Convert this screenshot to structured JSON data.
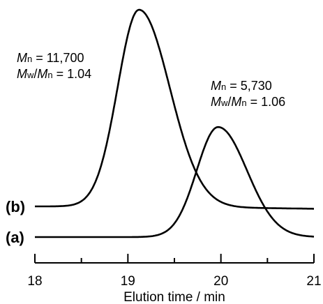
{
  "chart_data": {
    "type": "line",
    "title": "",
    "xlabel": "Elution time / min",
    "ylabel": "",
    "xlim": [
      18,
      21
    ],
    "ylim": [
      0,
      1
    ],
    "x_ticks": [
      "18",
      "19",
      "20",
      "21"
    ],
    "y_ticks_shown": false,
    "grid": false,
    "series": [
      {
        "name": "(b)",
        "baseline": 0.0,
        "peak_x": 19.12,
        "peak_height": 1.0,
        "color": "#000000"
      },
      {
        "name": "(a)",
        "baseline": 0.0,
        "peak_x": 19.97,
        "peak_height": 0.49,
        "color": "#000000"
      }
    ],
    "annotations": [
      {
        "series": "(b)",
        "mn": "11,700",
        "mwmn": "1.04"
      },
      {
        "series": "(a)",
        "mn": "5,730",
        "mwmn": "1.06"
      }
    ]
  }
}
